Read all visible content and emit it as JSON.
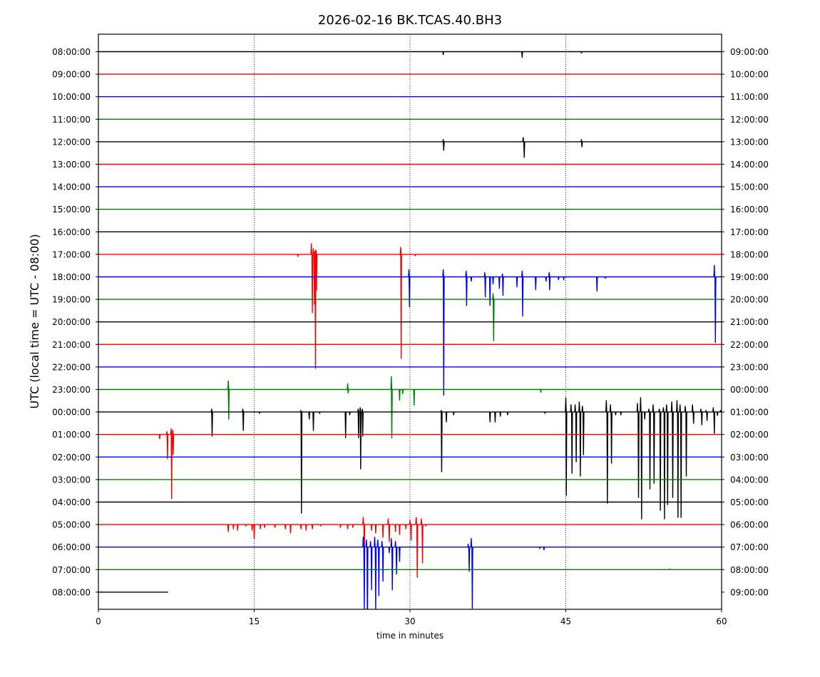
{
  "chart_data": {
    "type": "line",
    "title": "2026-02-16 BK.TCAS.40.BH3",
    "xlabel": "time in minutes",
    "ylabel": "UTC (local time = UTC - 08:00)",
    "xlim": [
      0,
      60
    ],
    "x_ticks": [
      0,
      15,
      30,
      45,
      60
    ],
    "x_tick_labels": [
      "0",
      "15",
      "30",
      "45",
      "60"
    ],
    "grid": "vertical dotted at 15, 30, 45",
    "colors": [
      "#000000",
      "#ff0000",
      "#0000ff",
      "#008000"
    ],
    "rows": [
      {
        "left": "08:00:00",
        "right": "09:00:00",
        "color": "#000000",
        "end": 60,
        "spikes": [
          [
            33.2,
            -4
          ],
          [
            40.8,
            -8
          ],
          [
            46.5,
            -2
          ]
        ]
      },
      {
        "left": "09:00:00",
        "right": "10:00:00",
        "color": "#ff0000",
        "end": 60,
        "spikes": []
      },
      {
        "left": "10:00:00",
        "right": "11:00:00",
        "color": "#0000ff",
        "end": 60,
        "spikes": []
      },
      {
        "left": "11:00:00",
        "right": "12:00:00",
        "color": "#008000",
        "end": 60,
        "spikes": []
      },
      {
        "left": "12:00:00",
        "right": "13:00:00",
        "color": "#000000",
        "end": 60,
        "spikes": [
          [
            33.2,
            3
          ],
          [
            33.25,
            -12
          ],
          [
            40.9,
            6
          ],
          [
            41.0,
            -22
          ],
          [
            46.5,
            3
          ],
          [
            46.55,
            -7
          ]
        ]
      },
      {
        "left": "13:00:00",
        "right": "14:00:00",
        "color": "#ff0000",
        "end": 60,
        "spikes": []
      },
      {
        "left": "14:00:00",
        "right": "15:00:00",
        "color": "#0000ff",
        "end": 60,
        "spikes": []
      },
      {
        "left": "15:00:00",
        "right": "16:00:00",
        "color": "#008000",
        "end": 60,
        "spikes": []
      },
      {
        "left": "16:00:00",
        "right": "17:00:00",
        "color": "#000000",
        "end": 60,
        "spikes": []
      },
      {
        "left": "17:00:00",
        "right": "18:00:00",
        "color": "#ff0000",
        "end": 60,
        "spikes": [
          [
            19.2,
            -3
          ],
          [
            20.5,
            15
          ],
          [
            20.6,
            -82
          ],
          [
            20.7,
            8
          ],
          [
            20.8,
            -70
          ],
          [
            20.85,
            4
          ],
          [
            20.9,
            -160
          ],
          [
            20.95,
            6
          ],
          [
            21.0,
            -50
          ],
          [
            29.1,
            10
          ],
          [
            29.15,
            -146
          ],
          [
            30.5,
            -2
          ]
        ]
      },
      {
        "left": "18:00:00",
        "right": "19:00:00",
        "color": "#0000ff",
        "end": 60,
        "spikes": [
          [
            29.9,
            10
          ],
          [
            29.95,
            -42
          ],
          [
            33.2,
            10
          ],
          [
            33.25,
            -166
          ],
          [
            35.4,
            8
          ],
          [
            35.45,
            -40
          ],
          [
            35.9,
            -6
          ],
          [
            37.2,
            6
          ],
          [
            37.25,
            -28
          ],
          [
            37.7,
            -40
          ],
          [
            38.0,
            -10
          ],
          [
            38.6,
            -16
          ],
          [
            38.9,
            4
          ],
          [
            38.95,
            -26
          ],
          [
            40.3,
            -14
          ],
          [
            40.8,
            8
          ],
          [
            40.85,
            -55
          ],
          [
            42.1,
            -18
          ],
          [
            43.1,
            -6
          ],
          [
            43.4,
            6
          ],
          [
            43.45,
            -18
          ],
          [
            44.3,
            -4
          ],
          [
            44.8,
            -4
          ],
          [
            48.0,
            -20
          ],
          [
            48.8,
            -2
          ],
          [
            59.3,
            16
          ],
          [
            59.4,
            -92
          ]
        ]
      },
      {
        "left": "19:00:00",
        "right": "20:00:00",
        "color": "#008000",
        "end": 60,
        "spikes": [
          [
            38.0,
            8
          ],
          [
            38.05,
            -58
          ]
        ]
      },
      {
        "left": "20:00:00",
        "right": "21:00:00",
        "color": "#000000",
        "end": 60,
        "spikes": []
      },
      {
        "left": "21:00:00",
        "right": "22:00:00",
        "color": "#ff0000",
        "end": 60,
        "spikes": []
      },
      {
        "left": "22:00:00",
        "right": "23:00:00",
        "color": "#0000ff",
        "end": 60,
        "spikes": []
      },
      {
        "left": "23:00:00",
        "right": "00:00:00",
        "color": "#008000",
        "end": 60,
        "spikes": [
          [
            12.5,
            12
          ],
          [
            12.55,
            -42
          ],
          [
            24.0,
            8
          ],
          [
            24.05,
            -5
          ],
          [
            28.2,
            18
          ],
          [
            28.25,
            -68
          ],
          [
            29.0,
            -15
          ],
          [
            29.3,
            -6
          ],
          [
            30.4,
            -22
          ],
          [
            42.6,
            -4
          ]
        ]
      },
      {
        "left": "00:00:00",
        "right": "01:00:00",
        "color": "#000000",
        "end": 60,
        "spikes": [
          [
            10.9,
            4
          ],
          [
            10.95,
            -34
          ],
          [
            13.9,
            4
          ],
          [
            13.95,
            -26
          ],
          [
            15.5,
            -2
          ],
          [
            19.5,
            2
          ],
          [
            19.55,
            -142
          ],
          [
            20.3,
            -10
          ],
          [
            20.7,
            -26
          ],
          [
            21.3,
            -2
          ],
          [
            23.8,
            -36
          ],
          [
            24.2,
            -4
          ],
          [
            25.0,
            4
          ],
          [
            25.05,
            -36
          ],
          [
            25.2,
            6
          ],
          [
            25.25,
            -80
          ],
          [
            25.4,
            4
          ],
          [
            25.45,
            -34
          ],
          [
            33.0,
            2
          ],
          [
            33.05,
            -84
          ],
          [
            33.5,
            -14
          ],
          [
            34.2,
            -4
          ],
          [
            37.7,
            -14
          ],
          [
            38.2,
            -14
          ],
          [
            38.7,
            -6
          ],
          [
            39.4,
            -4
          ],
          [
            43.0,
            -2
          ],
          [
            45.0,
            20
          ],
          [
            45.05,
            -117
          ],
          [
            45.5,
            10
          ],
          [
            45.6,
            -86
          ],
          [
            45.9,
            10
          ],
          [
            46.0,
            -70
          ],
          [
            46.3,
            14
          ],
          [
            46.4,
            -90
          ],
          [
            46.6,
            8
          ],
          [
            46.7,
            -60
          ],
          [
            48.9,
            16
          ],
          [
            49.0,
            -128
          ],
          [
            49.3,
            10
          ],
          [
            49.4,
            -72
          ],
          [
            49.8,
            -4
          ],
          [
            50.3,
            -4
          ],
          [
            51.9,
            12
          ],
          [
            52.0,
            -120
          ],
          [
            52.2,
            20
          ],
          [
            52.3,
            -150
          ],
          [
            52.6,
            -10
          ],
          [
            53.0,
            4
          ],
          [
            53.1,
            -108
          ],
          [
            53.4,
            10
          ],
          [
            53.5,
            -100
          ],
          [
            54.0,
            4
          ],
          [
            54.1,
            -138
          ],
          [
            54.4,
            6
          ],
          [
            54.5,
            -150
          ],
          [
            54.7,
            10
          ],
          [
            54.8,
            -130
          ],
          [
            55.2,
            14
          ],
          [
            55.3,
            -120
          ],
          [
            55.7,
            16
          ],
          [
            55.8,
            -148
          ],
          [
            56.0,
            10
          ],
          [
            56.1,
            -148
          ],
          [
            56.5,
            8
          ],
          [
            56.6,
            -90
          ],
          [
            57.2,
            10
          ],
          [
            57.3,
            -16
          ],
          [
            58.0,
            4
          ],
          [
            58.1,
            -18
          ],
          [
            58.5,
            2
          ],
          [
            58.6,
            -12
          ],
          [
            59.2,
            6
          ],
          [
            59.3,
            -30
          ],
          [
            59.6,
            -5
          ],
          [
            59.9,
            2
          ]
        ]
      },
      {
        "left": "01:00:00",
        "right": "02:00:00",
        "color": "#ff0000",
        "end": 60,
        "spikes": [
          [
            5.9,
            -6
          ],
          [
            6.6,
            4
          ],
          [
            6.65,
            -34
          ],
          [
            7.0,
            8
          ],
          [
            7.05,
            -90
          ],
          [
            7.15,
            6
          ],
          [
            7.2,
            -28
          ]
        ]
      },
      {
        "left": "02:00:00",
        "right": "03:00:00",
        "color": "#0000ff",
        "end": 60,
        "spikes": []
      },
      {
        "left": "03:00:00",
        "right": "04:00:00",
        "color": "#008000",
        "end": 60,
        "spikes": []
      },
      {
        "left": "04:00:00",
        "right": "05:00:00",
        "color": "#000000",
        "end": 60,
        "spikes": []
      },
      {
        "left": "05:00:00",
        "right": "06:00:00",
        "color": "#ff0000",
        "end": 60,
        "spikes": [
          [
            12.5,
            -10
          ],
          [
            13.0,
            -6
          ],
          [
            13.4,
            -8
          ],
          [
            14.2,
            -2
          ],
          [
            14.8,
            -8
          ],
          [
            15.0,
            -20
          ],
          [
            15.6,
            -6
          ],
          [
            16.0,
            -4
          ],
          [
            17.0,
            -4
          ],
          [
            18.0,
            -6
          ],
          [
            18.5,
            -12
          ],
          [
            19.5,
            -6
          ],
          [
            20.0,
            -8
          ],
          [
            20.6,
            -6
          ],
          [
            21.4,
            -2
          ],
          [
            23.3,
            -4
          ],
          [
            24.0,
            -6
          ],
          [
            24.5,
            -4
          ],
          [
            25.5,
            10
          ],
          [
            25.6,
            -46
          ],
          [
            26.3,
            -8
          ],
          [
            26.7,
            -12
          ],
          [
            27.4,
            -18
          ],
          [
            27.9,
            8
          ],
          [
            28.0,
            -24
          ],
          [
            28.6,
            -10
          ],
          [
            29.0,
            -14
          ],
          [
            29.6,
            -6
          ],
          [
            30.0,
            6
          ],
          [
            30.1,
            -22
          ],
          [
            30.6,
            10
          ],
          [
            30.7,
            -74
          ],
          [
            31.1,
            8
          ],
          [
            31.2,
            -54
          ],
          [
            31.5,
            -2
          ]
        ]
      },
      {
        "left": "06:00:00",
        "right": "07:00:00",
        "color": "#0000ff",
        "end": 60,
        "spikes": [
          [
            25.5,
            14
          ],
          [
            25.6,
            -90
          ],
          [
            25.8,
            10
          ],
          [
            25.9,
            -130
          ],
          [
            26.2,
            8
          ],
          [
            26.3,
            -60
          ],
          [
            26.6,
            14
          ],
          [
            26.7,
            -90
          ],
          [
            26.9,
            10
          ],
          [
            27.0,
            -68
          ],
          [
            27.3,
            8
          ],
          [
            27.4,
            -48
          ],
          [
            28.0,
            -8
          ],
          [
            28.2,
            12
          ],
          [
            28.3,
            -60
          ],
          [
            28.6,
            8
          ],
          [
            28.7,
            -38
          ],
          [
            29.0,
            -20
          ],
          [
            35.6,
            4
          ],
          [
            35.7,
            -34
          ],
          [
            35.9,
            12
          ],
          [
            36.0,
            -86
          ],
          [
            42.5,
            -2
          ],
          [
            42.9,
            -4
          ]
        ]
      },
      {
        "left": "07:00:00",
        "right": "08:00:00",
        "color": "#008000",
        "end": 60,
        "spikes": [
          [
            55.0,
            1
          ]
        ]
      },
      {
        "left": "08:00:00",
        "right": "09:00:00",
        "color": "#000000",
        "end": 6.7,
        "spikes": []
      }
    ]
  }
}
